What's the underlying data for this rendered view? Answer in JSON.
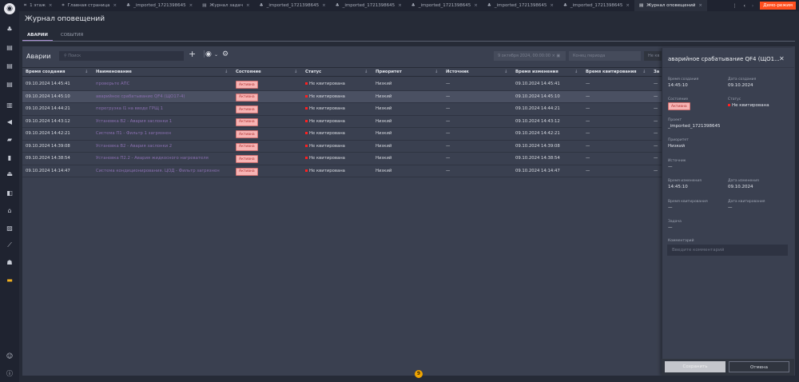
{
  "tabs": [
    {
      "label": "1 этаж",
      "icon": "floor-plan-icon"
    },
    {
      "label": "Главная страница",
      "icon": "floor-plan-icon"
    },
    {
      "label": "_imported_1721398645",
      "icon": "hierarchy-icon"
    },
    {
      "label": "Журнал задач",
      "icon": "document-icon"
    },
    {
      "label": "_imported_1721398645",
      "icon": "hierarchy-icon"
    },
    {
      "label": "_imported_1721398645",
      "icon": "hierarchy-icon"
    },
    {
      "label": "_imported_1721398645",
      "icon": "hierarchy-icon"
    },
    {
      "label": "_imported_1721398645",
      "icon": "hierarchy-icon"
    },
    {
      "label": "_imported_1721398645",
      "icon": "hierarchy-icon"
    },
    {
      "label": "Журнал оповещений",
      "icon": "document-icon",
      "active": true
    }
  ],
  "demo_label": "Демо-режим",
  "page_title": "Журнал оповещений",
  "subtabs": [
    "АВАРИИ",
    "СОБЫТИЯ"
  ],
  "panel": {
    "title": "Аварии",
    "search_placeholder": "Поиск",
    "date_from": "9 октября 2024, 00:00:00",
    "date_to_placeholder": "Конец периода",
    "filter_label": "Не кв"
  },
  "columns": [
    "Время создания",
    "Наименование",
    "Состояние",
    "Статус",
    "Приоритет",
    "Источник",
    "Время изменения",
    "Время квитирования",
    "За"
  ],
  "rows": [
    [
      "09.10.2024 14:45:41",
      "проверьте АПС",
      "Активна",
      "Не квитирована",
      "Низкий",
      "—",
      "09.10.2024 14:45:41",
      "—",
      "—"
    ],
    [
      "09.10.2024 14:45:10",
      "аварийное срабатывание QF4 (ЩО17-4)",
      "Активна",
      "Не квитирована",
      "Низкий",
      "—",
      "09.10.2024 14:45:10",
      "—",
      "—"
    ],
    [
      "09.10.2024 14:44:21",
      "перегрузка I1 на вводе ГРЩ 1",
      "Активна",
      "Не квитирована",
      "Низкий",
      "—",
      "09.10.2024 14:44:21",
      "—",
      "—"
    ],
    [
      "09.10.2024 14:43:12",
      "Установка В2 - Авария заслонки 1",
      "Активна",
      "Не квитирована",
      "Низкий",
      "—",
      "09.10.2024 14:43:12",
      "—",
      "—"
    ],
    [
      "09.10.2024 14:42:21",
      "Система П1 - Фильтр 1 загрязнен",
      "Активна",
      "Не квитирована",
      "Низкий",
      "—",
      "09.10.2024 14:42:21",
      "—",
      "—"
    ],
    [
      "09.10.2024 14:39:08",
      "Установка В2 - Авария заслонки 2",
      "Активна",
      "Не квитирована",
      "Низкий",
      "—",
      "09.10.2024 14:39:08",
      "—",
      "—"
    ],
    [
      "09.10.2024 14:38:54",
      "Установка П2.2 - Авария жидкосного нагревателя",
      "Активна",
      "Не квитирована",
      "Низкий",
      "—",
      "09.10.2024 14:38:54",
      "—",
      "—"
    ],
    [
      "09.10.2024 14:14:47",
      "Система кондиционирования. ЦОД - Фильтр загрязнен",
      "Активна",
      "Не квитирована",
      "Низкий",
      "—",
      "09.10.2024 14:14:47",
      "—",
      "—"
    ]
  ],
  "drawer": {
    "title": "аварийное срабатывание QF4 (ЩО1...",
    "created_time_label": "Время создания",
    "created_time": "14:45:10",
    "created_date_label": "Дата создания",
    "created_date": "09.10.2024",
    "state_label": "Состояние",
    "state": "Активна",
    "status_label": "Статус",
    "status": "Не квитирована",
    "project_label": "Проект",
    "project": "_imported_1721398645",
    "priority_label": "Приоритет",
    "priority": "Низкий",
    "source_label": "Источник",
    "source": "—",
    "changed_time_label": "Время изменения",
    "changed_time": "14:45:10",
    "changed_date_label": "Дата изменения",
    "changed_date": "09.10.2024",
    "ack_time_label": "Время квитирования",
    "ack_time": "—",
    "ack_date_label": "Дата квитирования",
    "ack_date": "—",
    "task_label": "Задача",
    "task": "—",
    "comment_label": "Комментарий",
    "comment_placeholder": "Введите комментарий",
    "save": "Сохранить",
    "cancel": "Отмена"
  },
  "notification_count": "9",
  "colors": {
    "accent": "#a990d0",
    "demo": "#ff4f1f",
    "alarm_dot": "#ff2020",
    "badge_bg": "#f7b4b4"
  }
}
